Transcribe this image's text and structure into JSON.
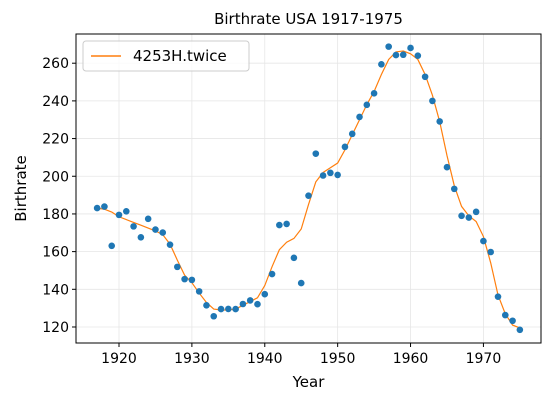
{
  "chart_data": {
    "type": "scatter",
    "title": "Birthrate USA 1917-1975",
    "xlabel": "Year",
    "ylabel": "Birthrate",
    "xlim": [
      1914.1,
      1977.9
    ],
    "ylim": [
      111.5,
      275.5
    ],
    "xticks": [
      1920,
      1930,
      1940,
      1950,
      1960,
      1970
    ],
    "yticks": [
      120,
      140,
      160,
      180,
      200,
      220,
      240,
      260
    ],
    "grid": true,
    "legend": {
      "location": "upper-left",
      "entries": [
        "4253H.twice"
      ]
    },
    "colors": {
      "points": "#1f77b4",
      "line": "#ff7f0e",
      "grid": "#e6e6e6"
    },
    "series": [
      {
        "type": "scatter",
        "x": [
          1917,
          1918,
          1919,
          1920,
          1921,
          1922,
          1923,
          1924,
          1925,
          1926,
          1927,
          1928,
          1929,
          1930,
          1931,
          1932,
          1933,
          1934,
          1935,
          1936,
          1937,
          1938,
          1939,
          1940,
          1941,
          1942,
          1943,
          1944,
          1945,
          1946,
          1947,
          1948,
          1949,
          1950,
          1951,
          1952,
          1953,
          1954,
          1955,
          1956,
          1957,
          1958,
          1959,
          1960,
          1961,
          1962,
          1963,
          1964,
          1965,
          1966,
          1967,
          1968,
          1969,
          1970,
          1971,
          1972,
          1973,
          1974,
          1975
        ],
        "y": [
          183.1,
          183.9,
          163.1,
          179.5,
          181.4,
          173.4,
          167.6,
          177.4,
          171.7,
          170.1,
          163.7,
          151.9,
          145.4,
          145.0,
          138.9,
          131.5,
          125.7,
          129.5,
          129.6,
          129.5,
          132.2,
          134.1,
          132.1,
          137.4,
          148.1,
          174.1,
          174.7,
          156.7,
          143.3,
          189.7,
          212.0,
          200.4,
          201.8,
          200.7,
          215.6,
          222.5,
          231.5,
          237.9,
          244.0,
          259.4,
          268.8,
          264.3,
          264.5,
          268.1,
          264.0,
          252.8,
          240.0,
          229.1,
          204.8,
          193.3,
          179.0,
          178.1,
          181.1,
          165.6,
          159.8,
          136.1,
          126.3,
          123.3,
          118.5
        ]
      },
      {
        "name": "4253H.twice",
        "type": "line",
        "x": [
          1917,
          1918,
          1919,
          1920,
          1921,
          1922,
          1923,
          1924,
          1925,
          1926,
          1927,
          1928,
          1929,
          1930,
          1931,
          1932,
          1933,
          1934,
          1935,
          1936,
          1937,
          1938,
          1939,
          1940,
          1941,
          1942,
          1943,
          1944,
          1945,
          1946,
          1947,
          1948,
          1949,
          1950,
          1951,
          1952,
          1953,
          1954,
          1955,
          1956,
          1957,
          1958,
          1959,
          1960,
          1961,
          1962,
          1963,
          1964,
          1965,
          1966,
          1967,
          1968,
          1969,
          1970,
          1971,
          1972,
          1973,
          1974,
          1975
        ],
        "y": [
          183.1,
          182.5,
          181.0,
          178.5,
          177.0,
          175.5,
          174.0,
          172.5,
          171.0,
          169.0,
          164.0,
          155.5,
          147.5,
          143.5,
          138.0,
          133.0,
          129.5,
          129.0,
          129.0,
          129.5,
          131.5,
          133.5,
          135.5,
          142.0,
          152.0,
          161.0,
          165.0,
          167.0,
          172.0,
          185.0,
          197.0,
          202.0,
          204.5,
          207.0,
          214.0,
          222.0,
          230.0,
          238.0,
          245.0,
          254.0,
          262.0,
          266.0,
          266.5,
          265.0,
          262.0,
          254.0,
          243.0,
          229.0,
          211.0,
          195.0,
          184.0,
          179.0,
          176.0,
          168.0,
          154.0,
          137.0,
          127.0,
          121.0,
          119.5
        ]
      }
    ]
  }
}
